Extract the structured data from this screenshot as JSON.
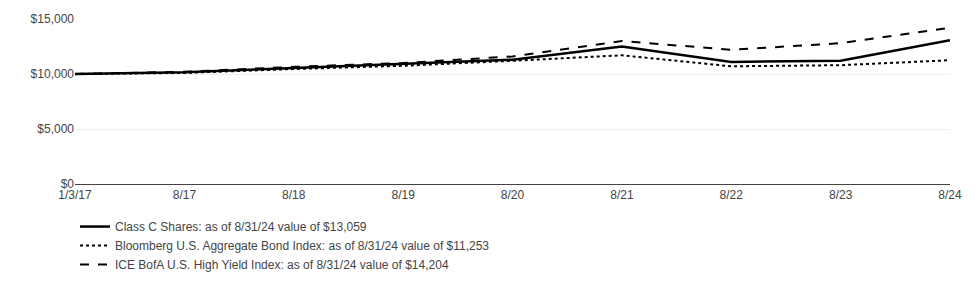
{
  "chart_data": {
    "type": "line",
    "categories": [
      "1/3/17",
      "8/17",
      "8/18",
      "8/19",
      "8/20",
      "8/21",
      "8/22",
      "8/23",
      "8/24"
    ],
    "series": [
      {
        "name": "Class C Shares: as of 8/31/24 value of $13,059",
        "color": "#000000",
        "line_style": "solid",
        "values": [
          10000,
          10150,
          10550,
          10900,
          11300,
          12500,
          11100,
          11200,
          13059
        ]
      },
      {
        "name": "Bloomberg U.S. Aggregate Bond Index: as of 8/31/24 value of $11,253",
        "color": "#000000",
        "line_style": "dotted",
        "values": [
          10000,
          10100,
          10450,
          10750,
          11200,
          11700,
          10700,
          10800,
          11253
        ]
      },
      {
        "name": "ICE BofA U.S. High Yield Index: as of 8/31/24 value of $14,204",
        "color": "#000000",
        "line_style": "dashed",
        "values": [
          10000,
          10200,
          10650,
          11000,
          11600,
          13000,
          12200,
          12800,
          14204
        ]
      }
    ],
    "ylim": [
      0,
      15000
    ],
    "yticks": [
      {
        "value": 0,
        "label": "$0"
      },
      {
        "value": 5000,
        "label": "$5,000"
      },
      {
        "value": 10000,
        "label": "$10,000"
      },
      {
        "value": 15000,
        "label": "$15,000"
      }
    ],
    "grid": true,
    "legend": "below"
  }
}
